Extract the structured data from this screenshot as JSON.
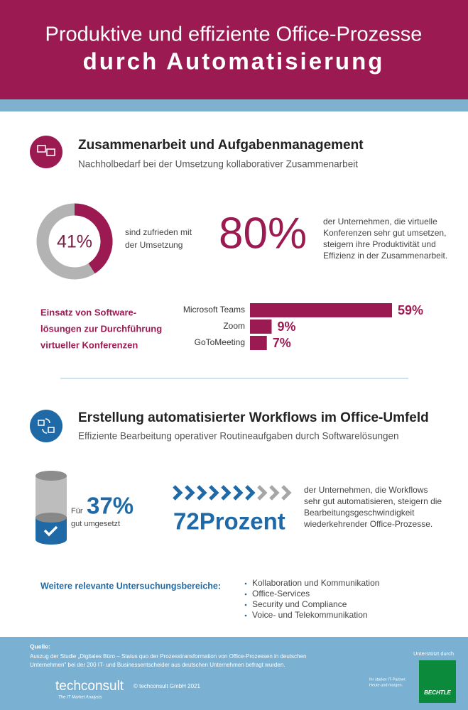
{
  "header": {
    "title_line1": "Produktive und effiziente Office-Prozesse",
    "title_line2": "durch Automatisierung"
  },
  "section1": {
    "title": "Zusammenarbeit und Aufgabenmanagement",
    "subtitle": "Nachholbedarf bei der Umsetzung kollaborativer Zusammenarbeit",
    "donut": {
      "value": 41,
      "label": "41%",
      "caption": [
        "sind zufrieden mit",
        "der Umsetzung"
      ]
    },
    "stat": {
      "label": "80%",
      "caption": [
        "der Unternehmen, die virtuelle",
        "Konferenzen sehr gut umsetzen,",
        "steigern ihre Produktivität und",
        "Effizienz in der Zusammenarbeit."
      ]
    },
    "bars_title": [
      "Einsatz von Software-",
      "lösungen zur Durchführung",
      "virtueller Konferenzen"
    ],
    "bars": [
      {
        "name": "Microsoft Teams",
        "value": 59,
        "label": "59%"
      },
      {
        "name": "Zoom",
        "value": 9,
        "label": "9%"
      },
      {
        "name": "GoToMeeting",
        "value": 7,
        "label": "7%"
      }
    ]
  },
  "section2": {
    "title": "Erstellung automatisierter Workflows im Office-Umfeld",
    "subtitle": "Effiziente Bearbeitung operativer Routineaufgaben durch Softwarelösungen",
    "cylinder": {
      "prefix": "Für",
      "label": "37%",
      "suffix": "gut umgesetzt"
    },
    "stat": {
      "label": "72Prozent",
      "caption": [
        "der Unternehmen, die Workflows",
        "sehr gut automatisieren, steigern die",
        "Bearbeitungsgeschwindigkeit",
        "wiederkehrender Office-Prozesse."
      ]
    },
    "further_title": "Weitere relevante Untersuchungsbereiche:",
    "further_items": [
      "Kollaboration und Kommunikation",
      "Office-Services",
      "Security und Compliance",
      "Voice- und Telekommunikation"
    ]
  },
  "footer": {
    "source_title": "Quelle:",
    "source_lines": [
      "Auszug der Studie „Digitales Büro – Status quo der Prozesstransformation von Office-Prozessen in deutschen",
      "Unternehmen\" bei der 200 IT- und Businessentscheider aus deutschen Unternehmen befragt wurden."
    ],
    "logo": "techconsult",
    "logo_tagline": "The IT Market Analysts",
    "copyright": "© techconsult GmbH 2021",
    "supported_by": "Unterstützt durch",
    "partner_tagline": [
      "Ihr starker IT-Partner.",
      "Heute und morgen."
    ],
    "partner": "BECHTLE"
  }
}
